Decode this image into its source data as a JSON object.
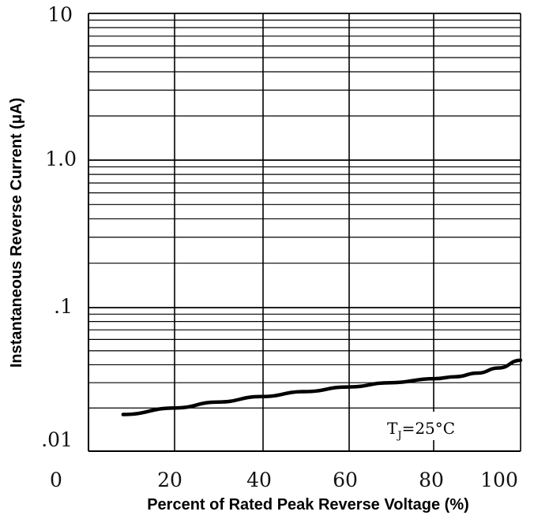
{
  "chart_data": {
    "type": "line",
    "xlabel": "Percent of Rated Peak Reverse Voltage (%)",
    "ylabel": "Instantaneous Reverse Current (μA)",
    "x_ticks": [
      "0",
      "20",
      "40",
      "60",
      "80",
      "100"
    ],
    "y_ticks": [
      ".01",
      ".1",
      "1.0",
      "10"
    ],
    "xlim": [
      0,
      100
    ],
    "ylim": [
      0.01,
      10
    ],
    "y_scale": "log",
    "grid": true,
    "annotation": {
      "text": "T",
      "sub": "J",
      "rest": "=25°C"
    },
    "series": [
      {
        "color": "#000000",
        "x": [
          8,
          20,
          30,
          40,
          50,
          60,
          70,
          80,
          85,
          90,
          95,
          100
        ],
        "y": [
          0.018,
          0.02,
          0.022,
          0.024,
          0.026,
          0.028,
          0.03,
          0.032,
          0.033,
          0.035,
          0.038,
          0.043
        ]
      }
    ]
  }
}
